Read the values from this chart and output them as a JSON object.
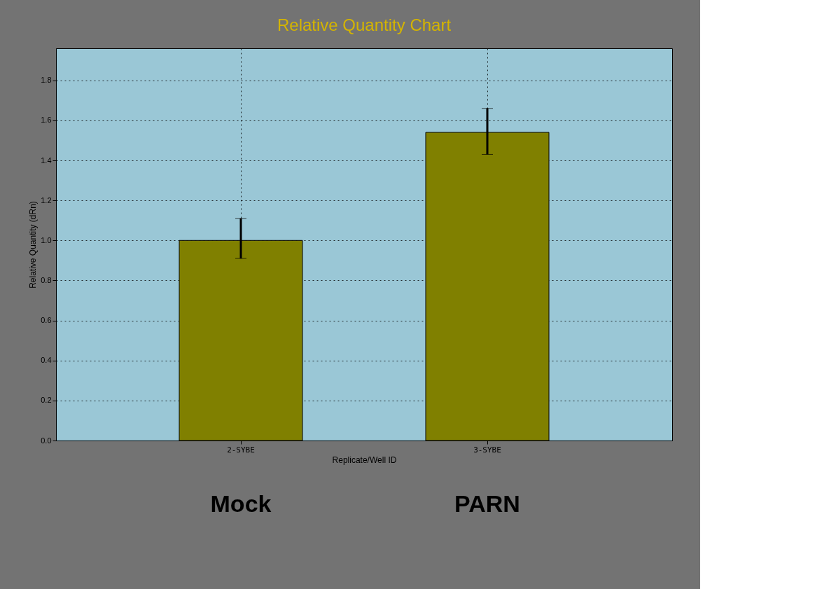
{
  "chart_data": {
    "type": "bar",
    "title": "Relative Quantity Chart",
    "xlabel": "Replicate/Well ID",
    "ylabel": "Relative Quantity (dRn)",
    "categories": [
      "2-SYBE",
      "3-SYBE"
    ],
    "values": [
      1.0,
      1.54
    ],
    "errors": [
      [
        0.91,
        1.11
      ],
      [
        1.43,
        1.66
      ]
    ],
    "color": "#808000",
    "ylim": [
      0,
      1.96
    ],
    "yticks": [
      {
        "value": 0,
        "label": "0.0"
      },
      0.2,
      0.4,
      0.6,
      0.8,
      {
        "value": 1,
        "label": "1.0"
      },
      1.2,
      1.4,
      1.6,
      1.8
    ],
    "grid": true,
    "annotations": [
      "Mock",
      "PARN"
    ]
  }
}
